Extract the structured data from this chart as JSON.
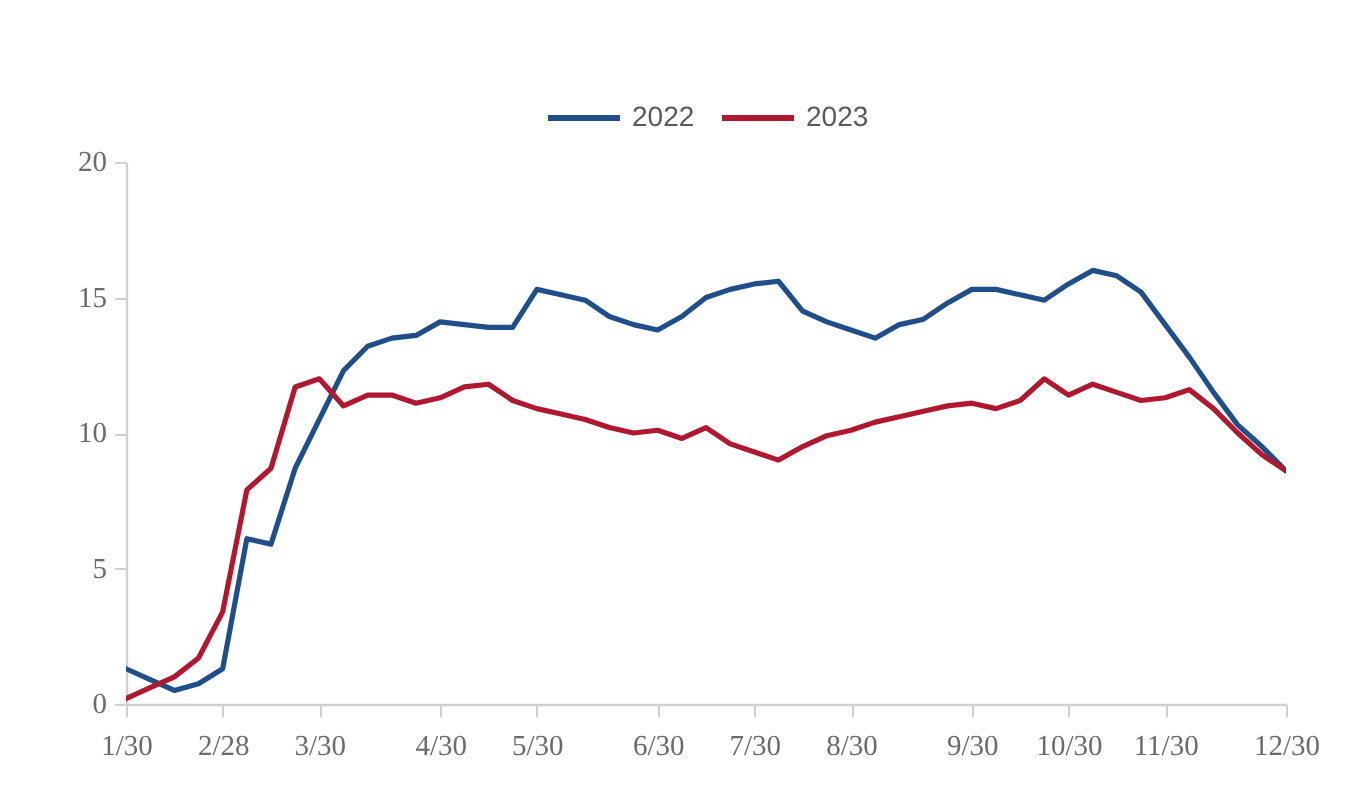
{
  "chart_data": {
    "type": "line",
    "categories": [
      "1/30",
      null,
      null,
      null,
      "2/28",
      null,
      null,
      null,
      "3/30",
      null,
      null,
      null,
      null,
      "4/30",
      null,
      null,
      null,
      "5/30",
      null,
      null,
      null,
      null,
      "6/30",
      null,
      null,
      null,
      "7/30",
      null,
      null,
      null,
      "8/30",
      null,
      null,
      null,
      null,
      "9/30",
      null,
      null,
      null,
      "10/30",
      null,
      null,
      null,
      "11/30",
      null,
      null,
      null,
      null,
      "12/30"
    ],
    "series": [
      {
        "name": "2022",
        "color": "#1f4e89",
        "values": [
          1.3,
          0.9,
          0.5,
          0.75,
          1.3,
          6.1,
          5.9,
          8.7,
          10.5,
          12.3,
          13.2,
          13.5,
          13.6,
          14.1,
          14.0,
          13.9,
          13.9,
          15.3,
          15.1,
          14.9,
          14.3,
          14.0,
          13.8,
          14.3,
          15.0,
          15.3,
          15.5,
          15.6,
          14.5,
          14.1,
          13.8,
          13.5,
          14.0,
          14.2,
          14.8,
          15.3,
          15.3,
          15.1,
          14.9,
          15.5,
          16.0,
          15.8,
          15.2,
          14.0,
          12.8,
          11.5,
          10.3,
          9.5,
          8.6
        ]
      },
      {
        "name": "2023",
        "color": "#b0182f",
        "values": [
          0.2,
          0.6,
          1.0,
          1.7,
          3.4,
          7.9,
          8.7,
          11.7,
          12.0,
          11.0,
          11.4,
          11.4,
          11.1,
          11.3,
          11.7,
          11.8,
          11.2,
          10.9,
          10.7,
          10.5,
          10.2,
          10.0,
          10.1,
          9.8,
          10.2,
          9.6,
          9.3,
          9.0,
          9.5,
          9.9,
          10.1,
          10.4,
          10.6,
          10.8,
          11.0,
          11.1,
          10.9,
          11.2,
          12.0,
          11.4,
          11.8,
          11.5,
          11.2,
          11.3,
          11.6,
          10.9,
          10.0,
          9.2,
          8.6
        ]
      }
    ],
    "ylim": [
      0,
      20
    ],
    "yticks": [
      0,
      5,
      10,
      15,
      20
    ],
    "grid": false,
    "legend": "top"
  }
}
